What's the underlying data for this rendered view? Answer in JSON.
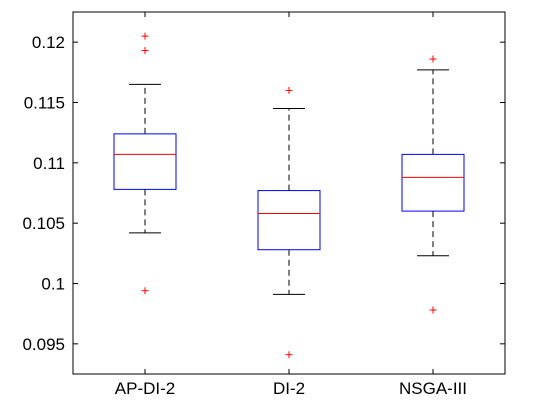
{
  "chart_data": {
    "type": "boxplot",
    "title": "",
    "xlabel": "",
    "ylabel": "",
    "categories": [
      "AP-DI-2",
      "DI-2",
      "NSGA-III"
    ],
    "ylim": [
      0.0925,
      0.1225
    ],
    "yticks": [
      0.095,
      0.1,
      0.105,
      0.11,
      0.115,
      0.12
    ],
    "ytick_labels": [
      "0.095",
      "0.1",
      "0.105",
      "0.11",
      "0.115",
      "0.12"
    ],
    "grid": false,
    "boxes": [
      {
        "category": "AP-DI-2",
        "whisker_low": 0.1042,
        "q1": 0.1078,
        "median": 0.1107,
        "q3": 0.1124,
        "whisker_high": 0.1165,
        "outliers": [
          0.1205,
          0.1193,
          0.0994
        ]
      },
      {
        "category": "DI-2",
        "whisker_low": 0.0991,
        "q1": 0.1028,
        "median": 0.1058,
        "q3": 0.1077,
        "whisker_high": 0.1145,
        "outliers": [
          0.116,
          0.0941
        ]
      },
      {
        "category": "NSGA-III",
        "whisker_low": 0.1023,
        "q1": 0.106,
        "median": 0.1088,
        "q3": 0.1107,
        "whisker_high": 0.1177,
        "outliers": [
          0.1186,
          0.0978
        ]
      }
    ],
    "colors": {
      "box": "#0000ff",
      "median": "#ff0000",
      "outlier": "#ff0000",
      "whisker": "#000000"
    }
  }
}
